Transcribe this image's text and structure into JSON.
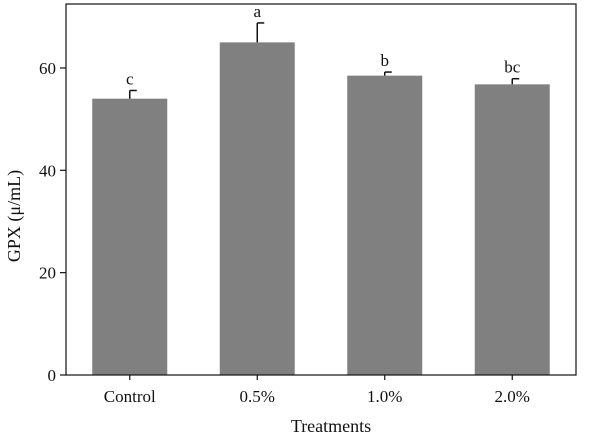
{
  "chart_data": {
    "type": "bar",
    "xlabel": "Treatments",
    "ylabel": "GPX (μ/mL)",
    "categories": [
      "Control",
      "0.5%",
      "1.0%",
      "2.0%"
    ],
    "values": [
      54.0,
      65.0,
      58.5,
      56.8
    ],
    "errors": [
      1.6,
      3.8,
      0.7,
      1.1
    ],
    "significance_letters": [
      "c",
      "a",
      "b",
      "bc"
    ],
    "ylim": [
      0,
      72.5
    ],
    "yticks": [
      0,
      20,
      40,
      60
    ],
    "grid": false,
    "legend": "none",
    "bar_color": "#808080"
  }
}
